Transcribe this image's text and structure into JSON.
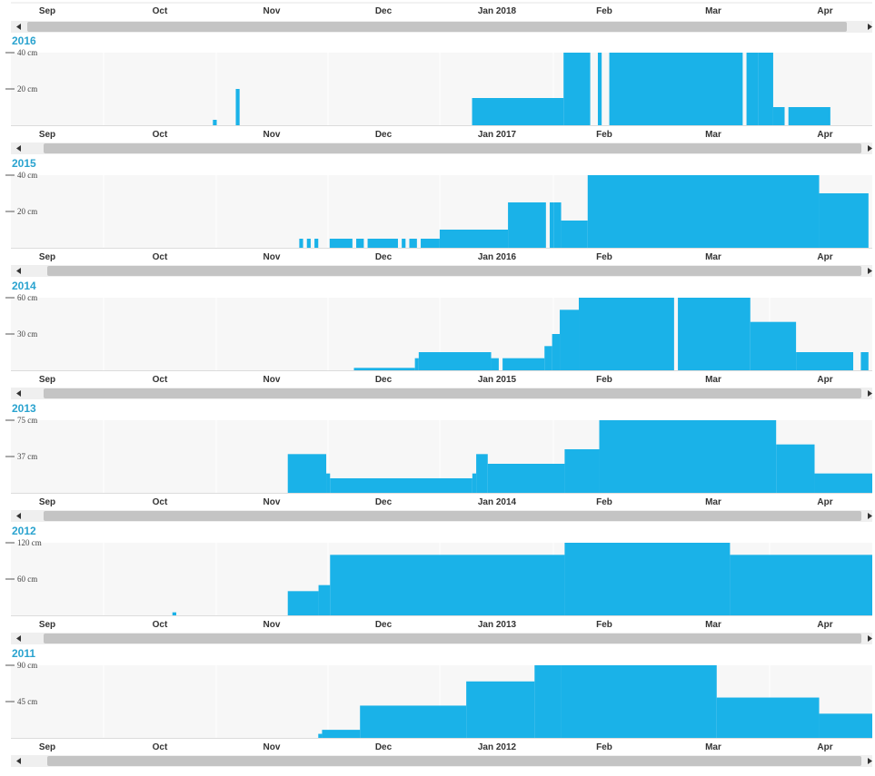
{
  "colors": {
    "bar": "#1ab2e8",
    "plot_bg": "#f7f7f7",
    "year_label": "#2aa3cf",
    "scrollbar_thumb": "#c4c4c4",
    "scrollbar_track": "#efefef",
    "axis_text": "#333333"
  },
  "icons": {
    "left": "scroll-left-arrow-icon",
    "right": "scroll-right-arrow-icon"
  },
  "top_axis": {
    "ticks": [
      "Sep",
      "Oct",
      "Nov",
      "Dec",
      "Jan 2018",
      "Feb",
      "Mar",
      "Apr"
    ]
  },
  "chart_data": [
    {
      "type": "bar",
      "year": "2016",
      "unit": "cm",
      "yticks": [
        "40 cm",
        "20 cm"
      ],
      "ylim": [
        0,
        40
      ],
      "xticks": [
        "Sep",
        "Oct",
        "Nov",
        "Dec",
        "Jan 2017",
        "Feb",
        "Mar",
        "Apr"
      ],
      "x_range": [
        "2016-09-01",
        "2017-04-15"
      ],
      "segments": [
        {
          "from": "2016-10-24",
          "to": "2016-10-25",
          "value": 3
        },
        {
          "from": "2016-10-30",
          "to": "2016-10-31",
          "value": 20
        },
        {
          "from": "2016-12-31",
          "to": "2017-01-24",
          "value": 15
        },
        {
          "from": "2017-01-24",
          "to": "2017-01-31",
          "value": 40
        },
        {
          "from": "2017-02-02",
          "to": "2017-02-03",
          "value": 40
        },
        {
          "from": "2017-02-05",
          "to": "2017-03-12",
          "value": 40
        },
        {
          "from": "2017-03-13",
          "to": "2017-03-16",
          "value": 40
        },
        {
          "from": "2017-03-16",
          "to": "2017-03-20",
          "value": 40
        },
        {
          "from": "2017-03-20",
          "to": "2017-03-23",
          "value": 10
        },
        {
          "from": "2017-03-24",
          "to": "2017-04-04",
          "value": 10
        }
      ]
    },
    {
      "type": "bar",
      "year": "2015",
      "unit": "cm",
      "yticks": [
        "40 cm",
        "20 cm"
      ],
      "ylim": [
        0,
        40
      ],
      "xticks": [
        "Sep",
        "Oct",
        "Nov",
        "Dec",
        "Jan 2016",
        "Feb",
        "Mar",
        "Apr"
      ],
      "x_range": [
        "2015-09-01",
        "2016-04-15"
      ],
      "segments": [
        {
          "from": "2015-11-16",
          "to": "2015-11-17",
          "value": 5
        },
        {
          "from": "2015-11-18",
          "to": "2015-11-19",
          "value": 5
        },
        {
          "from": "2015-11-20",
          "to": "2015-11-21",
          "value": 5
        },
        {
          "from": "2015-11-24",
          "to": "2015-11-30",
          "value": 5
        },
        {
          "from": "2015-12-01",
          "to": "2015-12-03",
          "value": 5
        },
        {
          "from": "2015-12-04",
          "to": "2015-12-12",
          "value": 5
        },
        {
          "from": "2015-12-13",
          "to": "2015-12-14",
          "value": 5
        },
        {
          "from": "2015-12-15",
          "to": "2015-12-17",
          "value": 5
        },
        {
          "from": "2015-12-18",
          "to": "2015-12-23",
          "value": 5
        },
        {
          "from": "2015-12-23",
          "to": "2016-01-10",
          "value": 10
        },
        {
          "from": "2016-01-10",
          "to": "2016-01-20",
          "value": 25
        },
        {
          "from": "2016-01-21",
          "to": "2016-01-22",
          "value": 25
        },
        {
          "from": "2016-01-22",
          "to": "2016-01-24",
          "value": 25
        },
        {
          "from": "2016-01-24",
          "to": "2016-01-31",
          "value": 15
        },
        {
          "from": "2016-01-31",
          "to": "2016-04-01",
          "value": 40
        },
        {
          "from": "2016-04-01",
          "to": "2016-04-14",
          "value": 30
        }
      ]
    },
    {
      "type": "bar",
      "year": "2014",
      "unit": "cm",
      "yticks": [
        "60 cm",
        "30 cm"
      ],
      "ylim": [
        0,
        60
      ],
      "xticks": [
        "Sep",
        "Oct",
        "Nov",
        "Dec",
        "Jan 2015",
        "Feb",
        "Mar",
        "Apr"
      ],
      "x_range": [
        "2014-09-01",
        "2015-04-15"
      ],
      "segments": [
        {
          "from": "2014-11-30",
          "to": "2014-12-16",
          "value": 2
        },
        {
          "from": "2014-12-16",
          "to": "2014-12-17",
          "value": 10
        },
        {
          "from": "2014-12-17",
          "to": "2015-01-05",
          "value": 15
        },
        {
          "from": "2015-01-05",
          "to": "2015-01-07",
          "value": 10
        },
        {
          "from": "2015-01-08",
          "to": "2015-01-19",
          "value": 10
        },
        {
          "from": "2015-01-19",
          "to": "2015-01-21",
          "value": 20
        },
        {
          "from": "2015-01-21",
          "to": "2015-01-23",
          "value": 30
        },
        {
          "from": "2015-01-23",
          "to": "2015-01-28",
          "value": 50
        },
        {
          "from": "2015-01-28",
          "to": "2015-02-22",
          "value": 60
        },
        {
          "from": "2015-02-23",
          "to": "2015-03-14",
          "value": 60
        },
        {
          "from": "2015-03-14",
          "to": "2015-03-26",
          "value": 40
        },
        {
          "from": "2015-03-26",
          "to": "2015-04-10",
          "value": 15
        },
        {
          "from": "2015-04-12",
          "to": "2015-04-14",
          "value": 15
        }
      ]
    },
    {
      "type": "bar",
      "year": "2013",
      "unit": "cm",
      "yticks": [
        "75 cm",
        "37 cm"
      ],
      "ylim": [
        0,
        75
      ],
      "xticks": [
        "Sep",
        "Oct",
        "Nov",
        "Dec",
        "Jan 2014",
        "Feb",
        "Mar",
        "Apr"
      ],
      "x_range": [
        "2013-09-01",
        "2014-04-13"
      ],
      "segments": [
        {
          "from": "2013-11-12",
          "to": "2013-11-22",
          "value": 40
        },
        {
          "from": "2013-11-22",
          "to": "2013-11-23",
          "value": 20
        },
        {
          "from": "2013-11-23",
          "to": "2013-12-30",
          "value": 15
        },
        {
          "from": "2013-12-30",
          "to": "2013-12-31",
          "value": 20
        },
        {
          "from": "2013-12-31",
          "to": "2014-01-03",
          "value": 40
        },
        {
          "from": "2014-01-03",
          "to": "2014-01-23",
          "value": 30
        },
        {
          "from": "2014-01-23",
          "to": "2014-02-01",
          "value": 45
        },
        {
          "from": "2014-02-01",
          "to": "2014-03-19",
          "value": 75
        },
        {
          "from": "2014-03-19",
          "to": "2014-03-29",
          "value": 50
        },
        {
          "from": "2014-03-29",
          "to": "2014-04-13",
          "value": 20
        }
      ]
    },
    {
      "type": "bar",
      "year": "2012",
      "unit": "cm",
      "yticks": [
        "120 cm",
        "60 cm"
      ],
      "ylim": [
        0,
        120
      ],
      "xticks": [
        "Sep",
        "Oct",
        "Nov",
        "Dec",
        "Jan 2013",
        "Feb",
        "Mar",
        "Apr"
      ],
      "x_range": [
        "2012-09-01",
        "2013-04-13"
      ],
      "segments": [
        {
          "from": "2012-10-13",
          "to": "2012-10-14",
          "value": 5
        },
        {
          "from": "2012-11-12",
          "to": "2012-11-20",
          "value": 40
        },
        {
          "from": "2012-11-20",
          "to": "2012-11-23",
          "value": 50
        },
        {
          "from": "2012-11-23",
          "to": "2013-01-23",
          "value": 100
        },
        {
          "from": "2013-01-23",
          "to": "2013-03-07",
          "value": 120
        },
        {
          "from": "2013-03-07",
          "to": "2013-04-13",
          "value": 100
        }
      ]
    },
    {
      "type": "bar",
      "year": "2011",
      "unit": "cm",
      "yticks": [
        "90 cm",
        "45 cm"
      ],
      "ylim": [
        0,
        90
      ],
      "xticks": [
        "Sep",
        "Oct",
        "Nov",
        "Dec",
        "Jan 2012",
        "Feb",
        "Mar",
        "Apr"
      ],
      "x_range": [
        "2011-09-01",
        "2012-04-15"
      ],
      "segments": [
        {
          "from": "2011-11-21",
          "to": "2011-11-22",
          "value": 5
        },
        {
          "from": "2011-11-22",
          "to": "2011-12-02",
          "value": 10
        },
        {
          "from": "2011-12-02",
          "to": "2011-12-30",
          "value": 40
        },
        {
          "from": "2011-12-30",
          "to": "2012-01-17",
          "value": 70
        },
        {
          "from": "2012-01-17",
          "to": "2012-01-24",
          "value": 90
        },
        {
          "from": "2012-01-24",
          "to": "2012-03-05",
          "value": 90
        },
        {
          "from": "2012-03-05",
          "to": "2012-04-01",
          "value": 50
        },
        {
          "from": "2012-04-01",
          "to": "2012-04-15",
          "value": 30
        }
      ]
    }
  ]
}
